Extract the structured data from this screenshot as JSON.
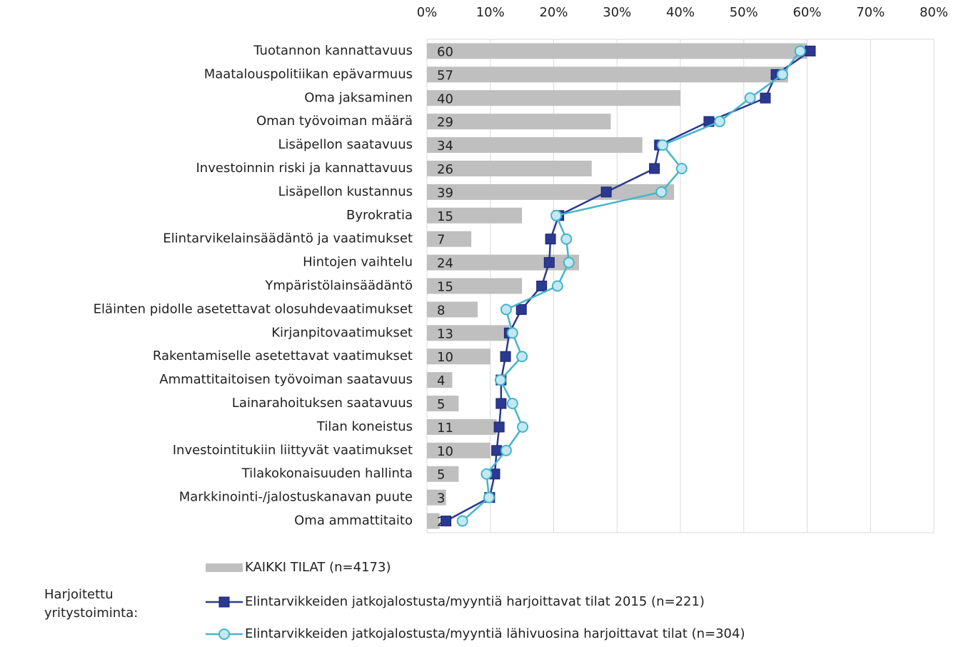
{
  "chart_data": {
    "type": "bar-line",
    "categories": [
      "Tuotannon kannattavuus",
      "Maatalouspolitiikan epävarmuus",
      "Oma jaksaminen",
      "Oman työvoiman määrä",
      "Lisäpellon saatavuus",
      "Investoinnin riski ja kannattavuus",
      "Lisäpellon kustannus",
      "Byrokratia",
      "Elintarvikelainsäädäntö ja vaatimukset",
      "Hintojen vaihtelu",
      "Ympäristölainsäädäntö",
      "Eläinten pidolle asetettavat olosuhdevaatimukset",
      "Kirjanpitovaatimukset",
      "Rakentamiselle asetettavat vaatimukset",
      "Ammattitaitoisen työvoiman saatavuus",
      "Lainarahoituksen saatavuus",
      "Tilan koneistus",
      "Investointitukiin liittyvät vaatimukset",
      "Tilakokonaisuuden hallinta",
      "Markkinointi-/jalostuskanavan puute",
      "Oma ammattitaito"
    ],
    "series": [
      {
        "name": "KAIKKI TILAT (n=4173)",
        "type": "bar",
        "color": "#bfbfbf",
        "values": [
          60,
          57,
          40,
          29,
          34,
          26,
          39,
          15,
          7,
          24,
          15,
          8,
          13,
          10,
          4,
          5,
          11,
          10,
          5,
          3,
          2
        ]
      },
      {
        "name": "Elintarvikkeiden jatkojalostusta/myyntiä harjoittavat tilat 2015 (n=221)",
        "type": "line",
        "marker": "square",
        "color": "#2b3990",
        "values": [
          60.5,
          55.1,
          53.4,
          44.5,
          36.7,
          35.9,
          28.3,
          20.8,
          19.5,
          19.3,
          18.1,
          14.9,
          13.0,
          12.4,
          11.7,
          11.7,
          11.4,
          11.0,
          10.7,
          9.9,
          3.0
        ]
      },
      {
        "name": "Elintarvikkeiden jatkojalostusta/myyntiä lähivuosina harjoittavat tilat (n=304)",
        "type": "line",
        "marker": "circle",
        "color": "#45b4cc",
        "values": [
          58.9,
          56.1,
          51.0,
          46.2,
          37.2,
          40.2,
          37.0,
          20.4,
          22.0,
          22.4,
          20.6,
          12.5,
          13.5,
          15.0,
          11.6,
          13.5,
          15.1,
          12.5,
          9.4,
          9.8,
          5.6
        ]
      }
    ],
    "legend_title": "Harjoitettu yritystoiminta:",
    "xlim": [
      0,
      80
    ],
    "xticks": [
      {
        "value": 0,
        "label": "0%"
      },
      {
        "value": 10,
        "label": "10%"
      },
      {
        "value": 20,
        "label": "20%"
      },
      {
        "value": 30,
        "label": "30%"
      },
      {
        "value": 40,
        "label": "40%"
      },
      {
        "value": 50,
        "label": "50%"
      },
      {
        "value": 60,
        "label": "60%"
      },
      {
        "value": 70,
        "label": "70%"
      },
      {
        "value": 80,
        "label": "80%"
      }
    ],
    "grid": true
  }
}
